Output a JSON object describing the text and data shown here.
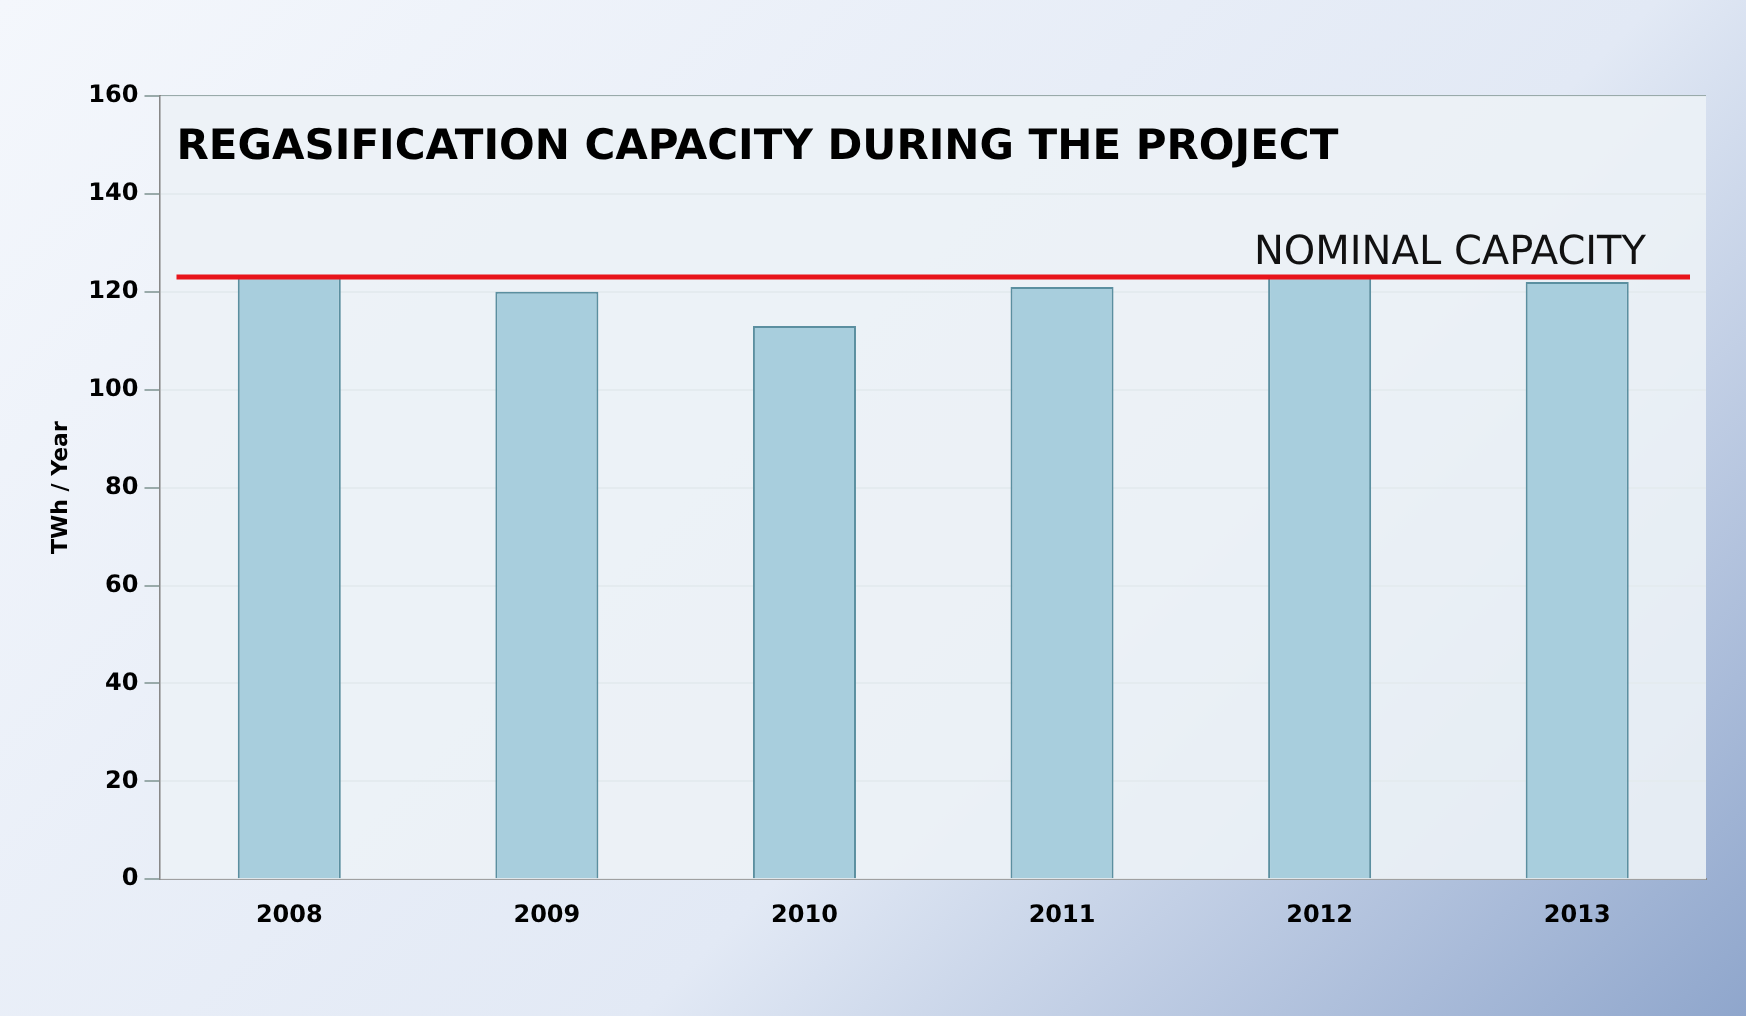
{
  "chart_data": {
    "type": "bar",
    "title": "REGASIFICATION CAPACITY DURING THE PROJECT",
    "ylabel": "TWh / Year",
    "categories": [
      "2008",
      "2009",
      "2010",
      "2011",
      "2012",
      "2013"
    ],
    "values": [
      123,
      120,
      113,
      121,
      123,
      122
    ],
    "color": "#a8cedd",
    "ylim": [
      0,
      160
    ],
    "yticks": [
      0,
      20,
      40,
      60,
      80,
      100,
      120,
      140,
      160
    ],
    "grid": "y",
    "legend": false,
    "ref_lines": [
      {
        "axis": "y",
        "value": 123,
        "label": "NOMINAL CAPACITY",
        "color": "#e8141b"
      }
    ]
  }
}
